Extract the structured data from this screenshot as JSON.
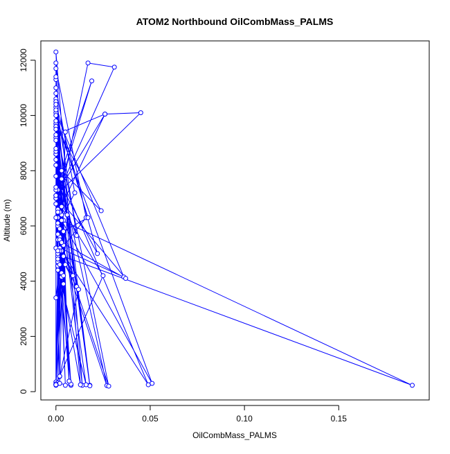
{
  "chart_data": {
    "type": "line",
    "title": "ATOM2 Northbound OilCombMass_PALMS",
    "xlabel": "OilCombMass_PALMS",
    "ylabel": "Altitude (m)",
    "xlim": [
      -0.008,
      0.198
    ],
    "ylim": [
      -300,
      12700
    ],
    "xticks": [
      0.0,
      0.05,
      0.1,
      0.15
    ],
    "xtick_labels": [
      "0.00",
      "0.05",
      "0.10",
      "0.15"
    ],
    "yticks": [
      0,
      2000,
      4000,
      6000,
      8000,
      10000,
      12000
    ],
    "ytick_labels": [
      "0",
      "2000",
      "4000",
      "6000",
      "8000",
      "10000",
      "12000"
    ],
    "grid": false,
    "legend": "none",
    "color": "#0000ff",
    "series": [
      {
        "x": [
          0.0,
          0.001,
          0.0,
          0.002,
          0.0,
          0.003,
          0.001,
          0.008,
          0.0,
          0.002,
          0.0,
          0.005,
          0.001,
          0.003,
          0.0,
          0.004,
          0.002,
          0.0,
          0.001,
          0.0,
          0.0,
          0.002,
          0.0,
          0.003,
          0.0,
          0.004,
          0.0,
          0.014,
          0.0,
          0.001,
          0.0,
          0.018,
          0.0,
          0.004,
          0.0,
          0.005,
          0.001,
          0.011,
          0.0,
          0.006,
          0.0,
          0.025,
          0.0,
          0.001,
          0.0,
          0.051,
          0.003,
          0.189,
          0.004,
          0.027,
          0.0,
          0.001,
          0.0,
          0.016,
          0.001,
          0.003,
          0.0,
          0.036,
          0.002,
          0.049,
          0.003,
          0.018,
          0.0,
          0.026,
          0.0,
          0.045,
          0.026,
          0.0,
          0.017,
          0.031,
          0.0,
          0.019,
          0.003,
          0.024,
          0.0,
          0.028,
          0.002,
          0.001,
          0.013,
          0.0,
          0.01,
          0.001,
          0.0,
          0.005,
          0.002,
          0.0,
          0.017,
          0.001,
          0.009,
          0.0,
          0.006,
          0.0,
          0.002,
          0.0,
          0.003,
          0.001,
          0.0,
          0.022,
          0.0,
          0.016,
          0.001,
          0.0,
          0.004,
          0.007,
          0.0,
          0.001,
          0.0,
          0.004,
          0.0,
          0.011,
          0.0,
          0.008,
          0.001,
          0.004,
          0.0,
          0.003,
          0.037,
          0.0,
          0.012,
          0.002,
          0.0,
          0.007,
          0.0,
          0.001,
          0.002,
          0.0
        ],
        "y": [
          230,
          4900,
          350,
          5600,
          260,
          6400,
          300,
          230,
          8200,
          550,
          260,
          9400,
          320,
          5100,
          9700,
          6200,
          300,
          10600,
          4700,
          11900,
          280,
          6500,
          9200,
          4150,
          10800,
          5300,
          12300,
          230,
          8400,
          6300,
          10300,
          230,
          9600,
          5800,
          11300,
          4600,
          7300,
          5650,
          10500,
          6400,
          250,
          4200,
          7000,
          5500,
          9800,
          300,
          6200,
          230,
          4900,
          220,
          8600,
          6600,
          11700,
          6300,
          5000,
          4300,
          10100,
          4150,
          5200,
          250,
          7700,
          210,
          9300,
          10050,
          7100,
          10100,
          10050,
          6300,
          11900,
          11750,
          7000,
          11250,
          8000,
          6550,
          9600,
          200,
          5500,
          4800,
          250,
          11000,
          7200,
          6000,
          8600,
          230,
          5900,
          10000,
          6300,
          5700,
          4200,
          7300,
          6400,
          8200,
          5100,
          9500,
          6700,
          4550,
          10400,
          5000,
          7800,
          250,
          4400,
          8700,
          5800,
          380,
          10200,
          6100,
          7400,
          4200,
          9100,
          3800,
          5200,
          270,
          6500,
          3900,
          8800,
          5400,
          4100,
          7100,
          3700,
          560,
          6800,
          380,
          11400,
          5100,
          4600,
          3400
        ]
      }
    ]
  }
}
